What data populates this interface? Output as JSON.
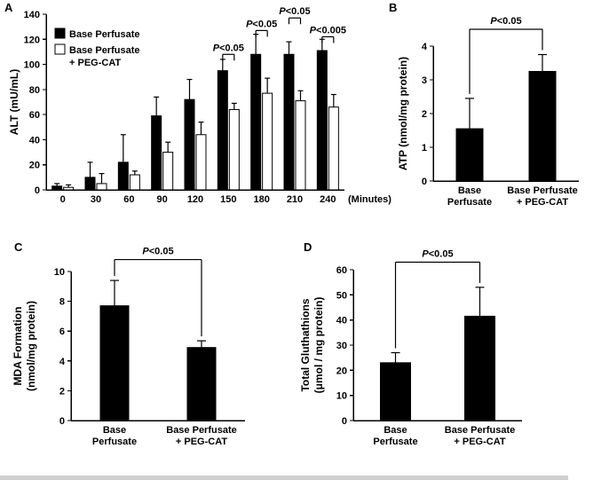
{
  "panel_labels": {
    "a": "A",
    "b": "B",
    "c": "C",
    "d": "D"
  },
  "chart_data": [
    {
      "panel": "A",
      "type": "bar",
      "ylabel": "ALT (mU/mL)",
      "xlabel_suffix": "(Minutes)",
      "ylim": [
        0,
        140
      ],
      "ytick_step": 20,
      "grid": false,
      "legend_position": "upper-left",
      "categories": [
        "0",
        "30",
        "60",
        "90",
        "120",
        "150",
        "180",
        "210",
        "240"
      ],
      "series": [
        {
          "name": "Base Perfusate",
          "fill": "#000000",
          "values": [
            3,
            10,
            22,
            59,
            72,
            95,
            108,
            108,
            111
          ],
          "errors_up": [
            2,
            12,
            22,
            15,
            16,
            9,
            16,
            10,
            9
          ]
        },
        {
          "name": "Base Perfusate\n+ PEG-CAT",
          "fill": "#ffffff",
          "values": [
            2,
            5,
            12,
            30,
            44,
            64,
            77,
            71,
            66
          ],
          "errors_up": [
            2,
            8,
            3,
            8,
            10,
            5,
            12,
            8,
            10
          ]
        }
      ],
      "significance": [
        {
          "category": "150",
          "text": "P<0.05",
          "bracket_y": 108
        },
        {
          "category": "180",
          "text": "P<0.05",
          "bracket_y": 127
        },
        {
          "category": "210",
          "text": "P<0.05",
          "bracket_y": 137
        },
        {
          "category": "240",
          "text": "P<0.005",
          "bracket_y": 122
        }
      ]
    },
    {
      "panel": "B",
      "type": "bar",
      "ylabel": "ATP (nmol/mg protein)",
      "ylim": [
        0,
        4
      ],
      "ytick_step": 1,
      "grid": false,
      "categories": [
        "Base\nPerfusate",
        "Base Perfusate\n+ PEG-CAT"
      ],
      "series": [
        {
          "name": "ATP",
          "fill": "#000000",
          "values": [
            1.55,
            3.25
          ],
          "errors_up": [
            0.9,
            0.5
          ]
        }
      ],
      "significance": [
        {
          "span": "all",
          "text": "P<0.05",
          "bracket_y": 4.5
        }
      ]
    },
    {
      "panel": "C",
      "type": "bar",
      "ylabel": "MDA Formation\n(nmol/mg protein)",
      "ylim": [
        0,
        10
      ],
      "ytick_step": 2,
      "grid": false,
      "categories": [
        "Base\nPerfusate",
        "Base Perfusate\n+ PEG-CAT"
      ],
      "series": [
        {
          "name": "MDA Formation",
          "fill": "#000000",
          "values": [
            7.7,
            4.9
          ],
          "errors_up": [
            1.7,
            0.45
          ]
        }
      ],
      "significance": [
        {
          "span": "all",
          "text": "P<0.05",
          "bracket_y": 10.8
        }
      ]
    },
    {
      "panel": "D",
      "type": "bar",
      "ylabel": "Total Gluthathions\n(μmol / mg protein)",
      "ylim": [
        0,
        60
      ],
      "ytick_step": 10,
      "grid": false,
      "categories": [
        "Base\nPerfusate",
        "Base Perfusate\n+ PEG-CAT"
      ],
      "series": [
        {
          "name": "Total Gluthathions",
          "fill": "#000000",
          "values": [
            23,
            41.5
          ],
          "errors_up": [
            4,
            11.5
          ]
        }
      ],
      "significance": [
        {
          "span": "all",
          "text": "P<0.05",
          "bracket_y": 63
        }
      ]
    }
  ]
}
